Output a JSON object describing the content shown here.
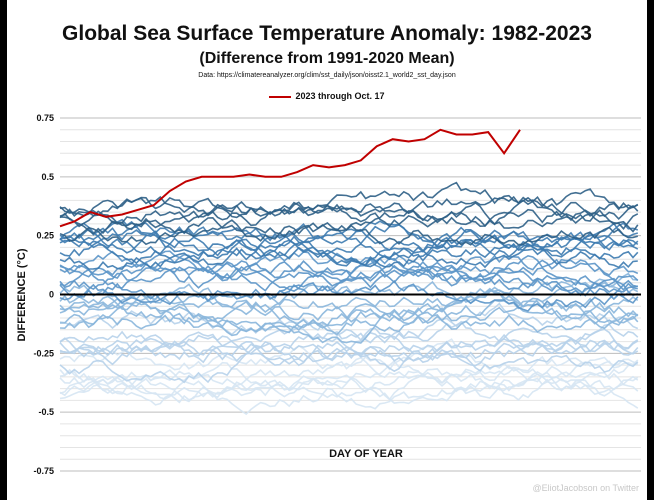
{
  "chart_data": {
    "type": "line",
    "title": "Global Sea Surface Temperature Anomaly: 1982-2023",
    "subtitle": "(Difference from 1991-2020 Mean)",
    "source": "Data: https://climatereanalyzer.org/clim/sst_daily/json/oisst2.1_world2_sst_day.json",
    "xlabel": "DAY OF YEAR",
    "ylabel": "DIFFERENCE (°C)",
    "ylim": [
      -0.75,
      0.75
    ],
    "xlim": [
      1,
      366
    ],
    "yticks": [
      "0.75",
      "0.5",
      "0.25",
      "0",
      "-0.25",
      "-0.5",
      "-0.75"
    ],
    "ytick_values": [
      0.75,
      0.5,
      0.25,
      0,
      -0.25,
      -0.5,
      -0.75
    ],
    "legend": "2023 through Oct. 17",
    "highlight_color": "#c00000",
    "highlight_series": {
      "name": "2023 through Oct. 17",
      "x": [
        1,
        10,
        20,
        30,
        40,
        50,
        60,
        70,
        80,
        90,
        100,
        110,
        120,
        130,
        140,
        150,
        160,
        170,
        180,
        190,
        200,
        210,
        220,
        230,
        240,
        250,
        260,
        270,
        280,
        290
      ],
      "values": [
        0.29,
        0.31,
        0.35,
        0.33,
        0.34,
        0.36,
        0.38,
        0.44,
        0.48,
        0.5,
        0.5,
        0.5,
        0.51,
        0.5,
        0.5,
        0.52,
        0.55,
        0.54,
        0.55,
        0.57,
        0.63,
        0.66,
        0.65,
        0.66,
        0.7,
        0.68,
        0.68,
        0.69,
        0.6,
        0.7
      ]
    },
    "background_series_count": 41,
    "background_anomaly_range": [
      -0.5,
      0.48
    ],
    "background_colors": [
      "#2e5f86",
      "#3d7bb0",
      "#5b95c8",
      "#89b6dc",
      "#b7d2ea",
      "#d6e5f3"
    ]
  },
  "credit": "@EliotJacobson on Twitter"
}
